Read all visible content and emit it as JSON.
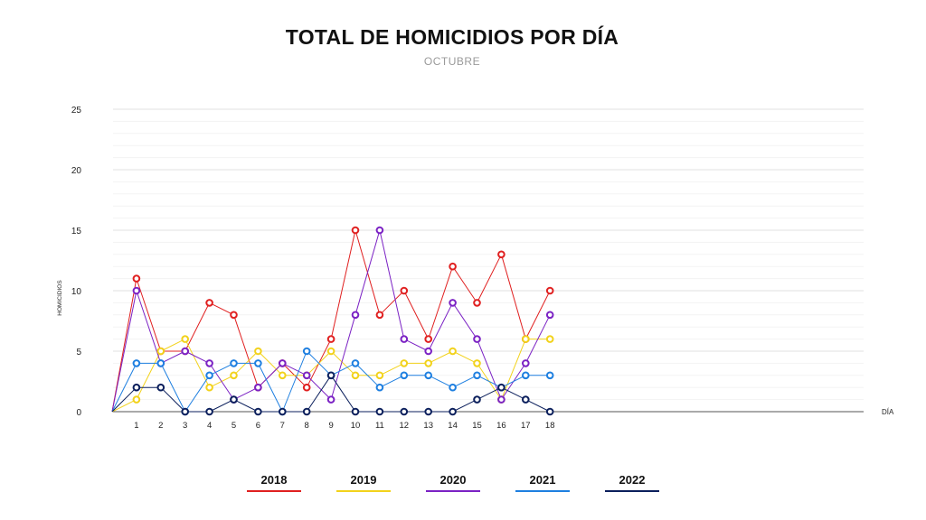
{
  "chart_data": {
    "type": "line",
    "title": "TOTAL DE HOMICIDIOS POR DÍA",
    "subtitle": "OCTUBRE",
    "xlabel": "DÍA",
    "ylabel": "HOMICIDIOS",
    "x": [
      1,
      2,
      3,
      4,
      5,
      6,
      7,
      8,
      9,
      10,
      11,
      12,
      13,
      14,
      15,
      16,
      17,
      18
    ],
    "ylim": [
      0,
      25
    ],
    "yticks": [
      0,
      5,
      10,
      15,
      20,
      25
    ],
    "grid": true,
    "legend_position": "bottom",
    "series": [
      {
        "name": "2018",
        "color": "#e02020",
        "values": [
          11,
          5,
          5,
          9,
          8,
          2,
          4,
          2,
          6,
          15,
          8,
          10,
          6,
          12,
          9,
          13,
          6,
          10
        ]
      },
      {
        "name": "2019",
        "color": "#f2d21b",
        "values": [
          1,
          5,
          6,
          2,
          3,
          5,
          3,
          3,
          5,
          3,
          3,
          4,
          4,
          5,
          4,
          1,
          6,
          6
        ]
      },
      {
        "name": "2020",
        "color": "#7b22c4",
        "values": [
          10,
          4,
          5,
          4,
          1,
          2,
          4,
          3,
          1,
          8,
          15,
          6,
          5,
          9,
          6,
          1,
          4,
          8
        ]
      },
      {
        "name": "2021",
        "color": "#1e7fe0",
        "values": [
          4,
          4,
          0,
          3,
          4,
          4,
          0,
          5,
          3,
          4,
          2,
          3,
          3,
          2,
          3,
          2,
          3,
          3
        ]
      },
      {
        "name": "2022",
        "color": "#0b1f5c",
        "values": [
          2,
          2,
          0,
          0,
          1,
          0,
          0,
          0,
          3,
          0,
          0,
          0,
          0,
          0,
          1,
          2,
          1,
          0
        ]
      }
    ]
  }
}
